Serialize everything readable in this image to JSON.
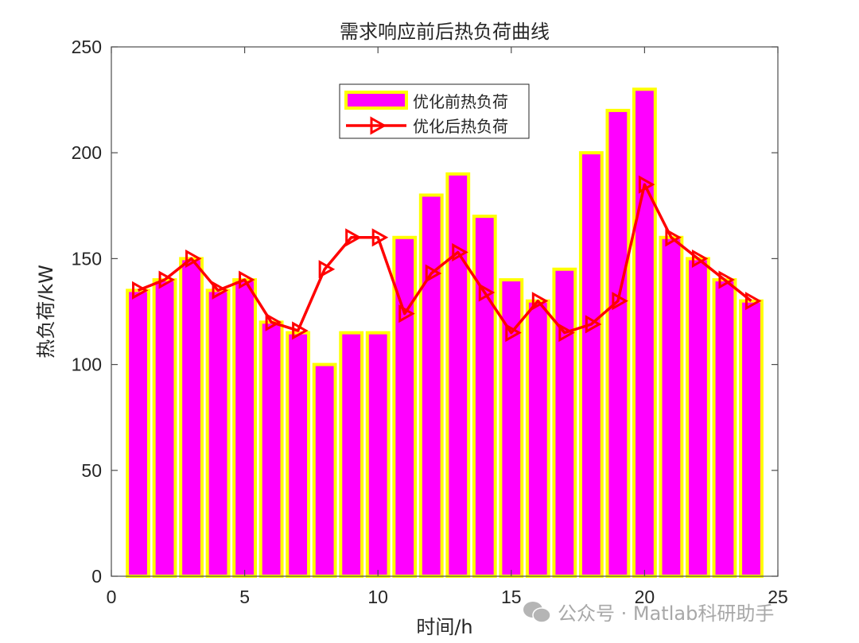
{
  "chart_data": {
    "type": "bar",
    "title": "需求响应前后热负荷曲线",
    "xlabel": "时间/h",
    "ylabel": "热负荷/kW",
    "xlim": [
      0,
      25
    ],
    "ylim": [
      0,
      250
    ],
    "xticks": [
      0,
      5,
      10,
      15,
      20,
      25
    ],
    "yticks": [
      0,
      50,
      100,
      150,
      200,
      250
    ],
    "grid": false,
    "legend_position": "top-center-inside",
    "x": [
      1,
      2,
      3,
      4,
      5,
      6,
      7,
      8,
      9,
      10,
      11,
      12,
      13,
      14,
      15,
      16,
      17,
      18,
      19,
      20,
      21,
      22,
      23,
      24
    ],
    "series": [
      {
        "name": "优化前热负荷",
        "type": "bar",
        "color": "#ff00ff",
        "edgecolor": "#ffff00",
        "values": [
          135,
          140,
          150,
          135,
          140,
          120,
          115,
          100,
          115,
          115,
          160,
          180,
          190,
          170,
          140,
          130,
          145,
          200,
          220,
          230,
          160,
          150,
          140,
          130
        ]
      },
      {
        "name": "优化后热负荷",
        "type": "line",
        "color": "#ff0000",
        "marker": "triangle-right",
        "values": [
          135,
          140,
          150,
          135,
          140,
          120,
          116,
          145,
          160,
          160,
          124,
          143,
          153,
          134,
          115,
          130,
          115,
          119,
          130,
          185,
          160,
          150,
          140,
          130
        ]
      }
    ]
  },
  "watermark": {
    "text": "公众号 · Matlab科研助手"
  }
}
